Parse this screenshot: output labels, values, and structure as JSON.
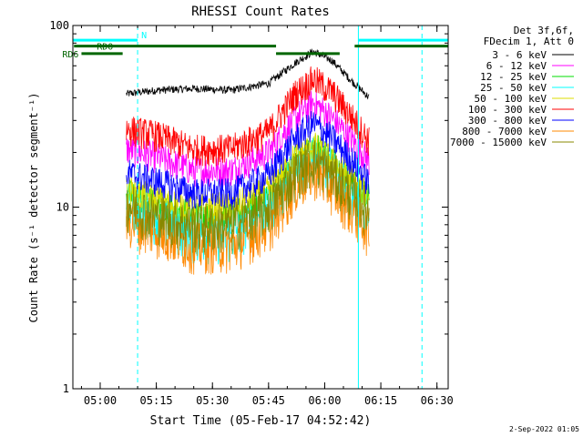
{
  "chart_data": {
    "type": "line",
    "title": "RHESSI Count Rates",
    "xlabel": "Start Time (05-Feb-17 04:52:42)",
    "ylabel": "Count Rate (s⁻¹ detector segment⁻¹)",
    "y_scale": "log",
    "ylim": [
      1,
      100
    ],
    "xlim": [
      "04:52:42",
      "06:33:00"
    ],
    "x_ticks": [
      "05:00",
      "05:15",
      "05:30",
      "05:45",
      "06:00",
      "06:15",
      "06:30"
    ],
    "y_ticks": [
      "1",
      "10",
      "100"
    ],
    "grid": false,
    "legend_header": [
      "Det 3f,6f,",
      "FDecim 1, Att 0"
    ],
    "legend_position": "right",
    "series": [
      {
        "name": "3 - 6 keV",
        "color": "#000000",
        "x": [
          "05:07",
          "05:15",
          "05:25",
          "05:35",
          "05:45",
          "05:52",
          "05:57",
          "06:02",
          "06:07",
          "06:12"
        ],
        "values": [
          42,
          44,
          45,
          44,
          48,
          62,
          72,
          64,
          50,
          40
        ]
      },
      {
        "name": "6 - 12 keV",
        "color": "#ff00ff",
        "x": [
          "05:07",
          "05:15",
          "05:25",
          "05:35",
          "05:45",
          "05:52",
          "05:57",
          "06:02",
          "06:07",
          "06:12"
        ],
        "values": [
          21,
          19,
          16,
          16,
          20,
          31,
          38,
          31,
          24,
          18
        ]
      },
      {
        "name": "12 - 25 keV",
        "color": "#00dd00",
        "x": [
          "05:07",
          "05:15",
          "05:25",
          "05:35",
          "05:45",
          "05:52",
          "05:57",
          "06:02",
          "06:07",
          "06:12"
        ],
        "values": [
          12,
          10.5,
          9,
          9,
          11.5,
          18,
          22,
          18,
          14,
          11
        ]
      },
      {
        "name": "25 - 50 keV",
        "color": "#00ffff",
        "x": [
          "05:07",
          "05:15",
          "05:25",
          "05:35",
          "05:45",
          "05:52",
          "05:57",
          "06:02",
          "06:07",
          "06:12"
        ],
        "values": [
          11,
          9,
          7,
          7,
          10,
          16,
          20,
          16,
          12,
          10
        ]
      },
      {
        "name": "50 - 100 keV",
        "color": "#dddd00",
        "x": [
          "05:07",
          "05:15",
          "05:25",
          "05:35",
          "05:45",
          "05:52",
          "05:57",
          "06:02",
          "06:07",
          "06:12"
        ],
        "values": [
          12.5,
          11,
          10,
          10,
          12.5,
          19,
          22,
          18,
          14.5,
          11.5
        ]
      },
      {
        "name": "100 - 300 keV",
        "color": "#ff0000",
        "x": [
          "05:07",
          "05:15",
          "05:25",
          "05:35",
          "05:45",
          "05:52",
          "05:57",
          "06:02",
          "06:07",
          "06:12"
        ],
        "values": [
          27,
          25,
          21,
          21,
          26,
          42,
          51,
          43,
          32,
          23
        ]
      },
      {
        "name": "300 - 800 keV",
        "color": "#0000ff",
        "x": [
          "05:07",
          "05:15",
          "05:25",
          "05:35",
          "05:45",
          "05:52",
          "05:57",
          "06:02",
          "06:07",
          "06:12"
        ],
        "values": [
          15.5,
          14,
          12,
          12,
          15,
          24,
          29,
          24,
          18.5,
          13.5
        ]
      },
      {
        "name": "800 - 7000 keV",
        "color": "#ff8800",
        "x": [
          "05:07",
          "05:15",
          "05:25",
          "05:35",
          "05:45",
          "05:52",
          "05:57",
          "06:02",
          "06:07",
          "06:12"
        ],
        "values": [
          8.5,
          7.5,
          6.2,
          6.2,
          8,
          13,
          16,
          13,
          10,
          7.5
        ]
      },
      {
        "name": "7000 - 15000 keV",
        "color": "#888800",
        "x": [
          "05:07",
          "05:15",
          "05:25",
          "05:35",
          "05:45",
          "05:52",
          "05:57",
          "06:02",
          "06:07",
          "06:12"
        ],
        "values": [
          10.5,
          9,
          8,
          8,
          10,
          15.5,
          18.5,
          15.5,
          12,
          9.5
        ]
      }
    ],
    "annotations": [
      {
        "label": "N",
        "color": "#00ffff",
        "kind": "night",
        "intervals": [
          [
            "04:52:42",
            "05:10:00"
          ],
          [
            "06:09:00",
            "06:33:00"
          ]
        ],
        "level": 83
      },
      {
        "label": "RD0",
        "color": "#006600",
        "kind": "decimation",
        "intervals": [
          [
            "04:53:00",
            "05:47:00"
          ],
          [
            "06:08:00",
            "06:33:00"
          ]
        ],
        "level": 77
      },
      {
        "label": "",
        "color": "#006600",
        "kind": "decimation",
        "intervals": [
          [
            "05:47:00",
            "06:04:00"
          ]
        ],
        "level": 70
      },
      {
        "label": "RD6",
        "color": "#006600",
        "kind": "decimation",
        "intervals": [
          [
            "04:55:00",
            "05:06:00"
          ]
        ],
        "level": 70
      }
    ],
    "vlines": [
      {
        "x": "04:52:42",
        "color": "#00ffff",
        "style": "solid"
      },
      {
        "x": "05:10:00",
        "color": "#00ffff",
        "style": "dashed"
      },
      {
        "x": "06:09:00",
        "color": "#00ffff",
        "style": "solid"
      },
      {
        "x": "06:26:00",
        "color": "#00ffff",
        "style": "dashed"
      }
    ]
  },
  "footer": {
    "timestamp": "2-Sep-2022 01:05"
  }
}
